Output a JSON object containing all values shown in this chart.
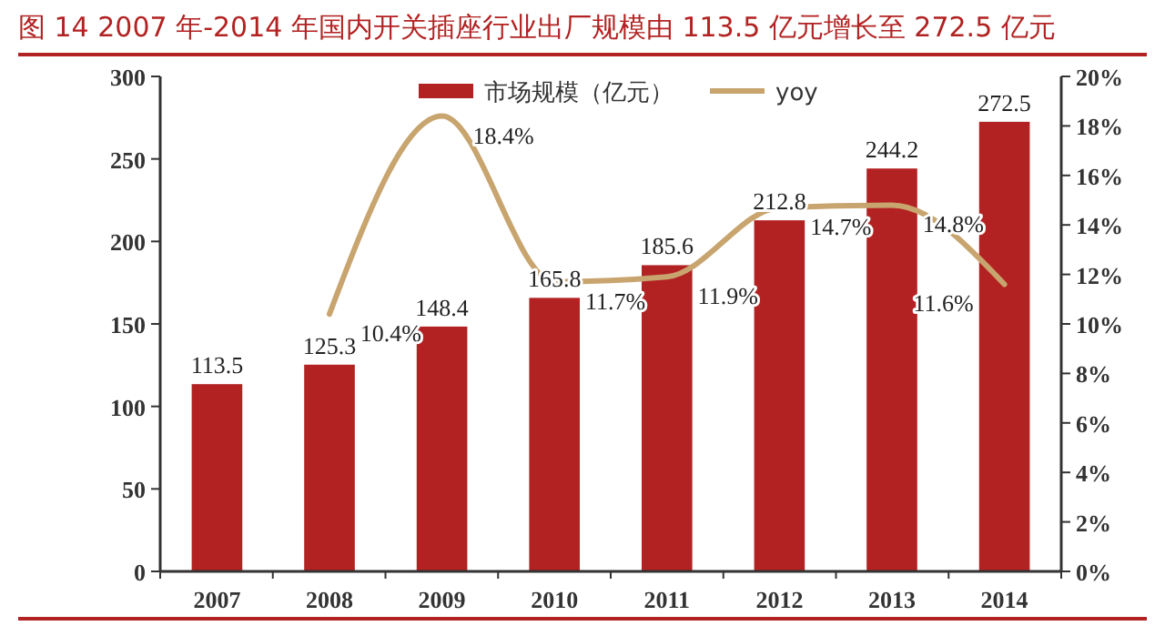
{
  "chart_data": {
    "type": "bar",
    "title": "图 14   2007 年-2014 年国内开关插座行业出厂规模由 113.5 亿元增长至 272.5 亿元",
    "categories": [
      "2007",
      "2008",
      "2009",
      "2010",
      "2011",
      "2012",
      "2013",
      "2014"
    ],
    "series": [
      {
        "name": "市场规模（亿元）",
        "color": "#b22222",
        "values": [
          113.5,
          125.3,
          148.4,
          165.8,
          185.6,
          212.8,
          244.2,
          272.5
        ]
      },
      {
        "name": "yoy",
        "type": "line",
        "axis": "y2",
        "color": "#c8a46e",
        "values": [
          null,
          10.4,
          18.4,
          11.7,
          11.9,
          14.7,
          14.8,
          11.6
        ],
        "value_labels": [
          null,
          "10.4%",
          "18.4%",
          "11.7%",
          "11.9%",
          "14.7%",
          "14.8%",
          "11.6%"
        ]
      }
    ],
    "data_labels": true,
    "ylim": [
      0,
      300
    ],
    "yticks": [
      0,
      50,
      100,
      150,
      200,
      250,
      300
    ],
    "y2lim": [
      0,
      20
    ],
    "y2ticks": [
      {
        "value": 0,
        "label": "0%"
      },
      {
        "value": 2,
        "label": "2%"
      },
      {
        "value": 4,
        "label": "4%"
      },
      {
        "value": 6,
        "label": "6%"
      },
      {
        "value": 8,
        "label": "8%"
      },
      {
        "value": 10,
        "label": "10%"
      },
      {
        "value": 12,
        "label": "12%"
      },
      {
        "value": 14,
        "label": "14%"
      },
      {
        "value": 16,
        "label": "16%"
      },
      {
        "value": 18,
        "label": "18%"
      },
      {
        "value": 20,
        "label": "20%"
      }
    ],
    "grid": false,
    "legend": "top",
    "marker": "none",
    "line_style": "solid"
  }
}
